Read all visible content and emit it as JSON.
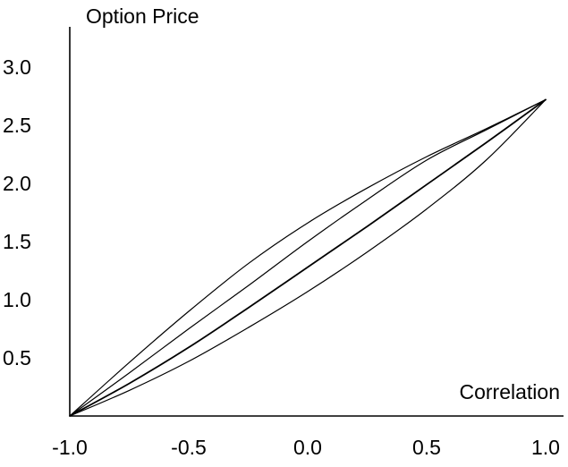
{
  "chart_data": {
    "type": "line",
    "title": "",
    "xlabel": "Correlation",
    "ylabel": "Option Price",
    "xlim": [
      -1.0,
      1.0
    ],
    "ylim": [
      0.0,
      3.0
    ],
    "x_ticks": [
      "-1.0",
      "-0.5",
      "0.0",
      "0.5",
      "1.0"
    ],
    "y_ticks": [
      "0.5",
      "1.0",
      "1.5",
      "2.0",
      "2.5",
      "3.0"
    ],
    "grid": false,
    "legend": "none",
    "line_color": "#000000",
    "series": [
      {
        "x": [
          -1.0,
          -0.75,
          -0.5,
          -0.25,
          0.0,
          0.25,
          0.5,
          0.75,
          1.0
        ],
        "y": [
          0.0,
          0.46,
          0.9,
          1.31,
          1.66,
          1.96,
          2.23,
          2.47,
          2.72
        ],
        "line_width": 1.2
      },
      {
        "x": [
          -1.0,
          -0.75,
          -0.5,
          -0.25,
          0.0,
          0.25,
          0.5,
          0.75,
          1.0
        ],
        "y": [
          0.0,
          0.37,
          0.75,
          1.12,
          1.5,
          1.86,
          2.2,
          2.46,
          2.72
        ],
        "line_width": 1.2
      },
      {
        "x": [
          -1.0,
          -0.75,
          -0.5,
          -0.25,
          0.0,
          0.25,
          0.5,
          0.75,
          1.0
        ],
        "y": [
          0.0,
          0.28,
          0.59,
          0.93,
          1.28,
          1.63,
          1.99,
          2.35,
          2.72
        ],
        "line_width": 1.8
      },
      {
        "x": [
          -1.0,
          -0.75,
          -0.5,
          -0.25,
          0.0,
          0.25,
          0.5,
          0.75,
          1.0
        ],
        "y": [
          0.0,
          0.22,
          0.47,
          0.76,
          1.07,
          1.41,
          1.78,
          2.2,
          2.72
        ],
        "line_width": 1.2
      }
    ]
  }
}
